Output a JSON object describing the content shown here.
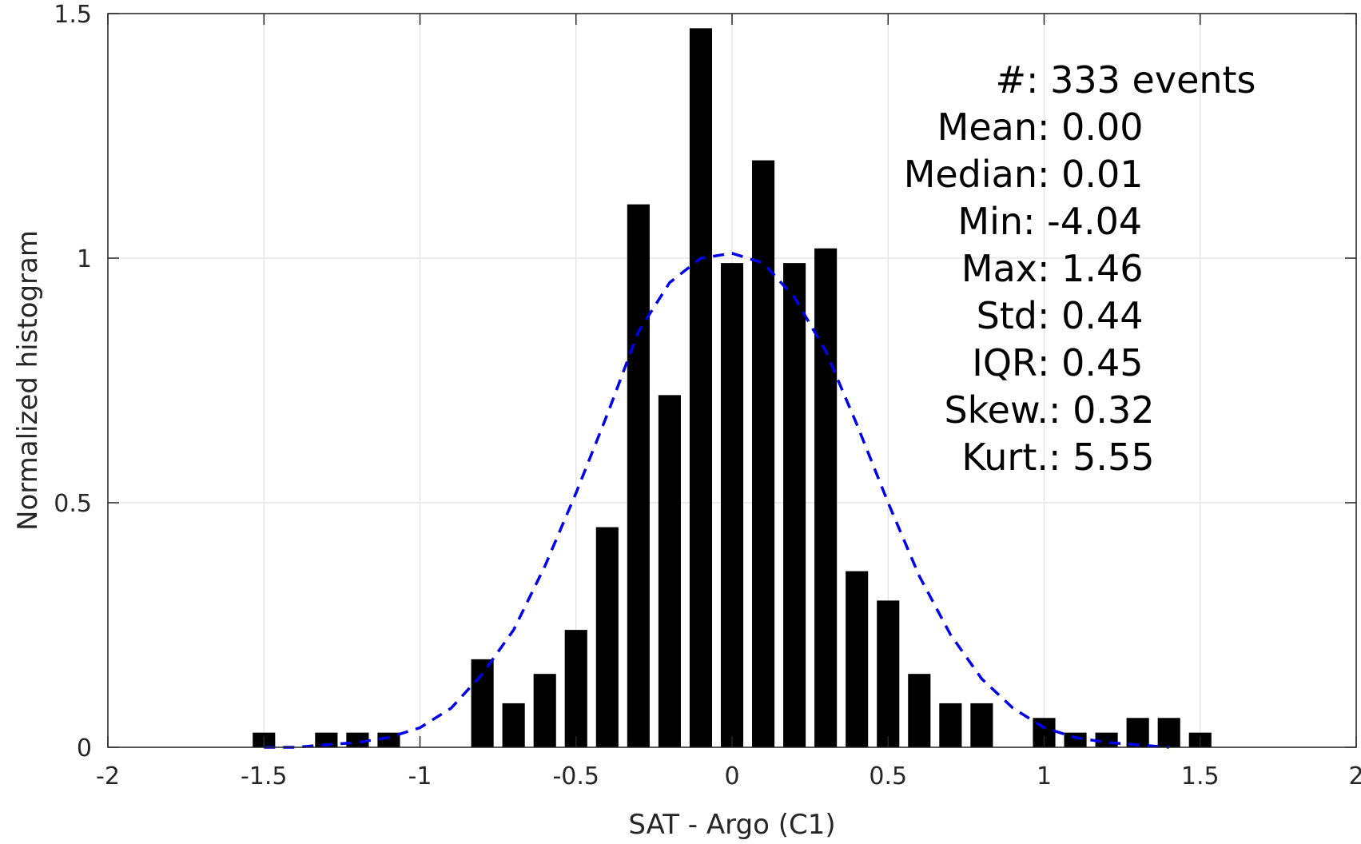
{
  "chart_data": {
    "type": "bar",
    "xlabel": "SAT - Argo (C1)",
    "ylabel": "Normalized histogram",
    "xlim": [
      -2,
      2
    ],
    "ylim": [
      0,
      1.5
    ],
    "xticks": [
      -2,
      -1.5,
      -1,
      -0.5,
      0,
      0.5,
      1,
      1.5,
      2
    ],
    "xtick_labels": [
      "-2",
      "-1.5",
      "-1",
      "-0.5",
      "0",
      "0.5",
      "1",
      "1.5",
      "2"
    ],
    "yticks": [
      0,
      0.5,
      1,
      1.5
    ],
    "ytick_labels": [
      "0",
      "0.5",
      "1",
      "1.5"
    ],
    "grid": true,
    "bar_color": "#000000",
    "bin_width": 0.1,
    "bars": {
      "x": [
        -1.5,
        -1.3,
        -1.2,
        -1.1,
        -0.8,
        -0.7,
        -0.6,
        -0.5,
        -0.4,
        -0.3,
        -0.2,
        -0.1,
        0.0,
        0.1,
        0.2,
        0.3,
        0.4,
        0.5,
        0.6,
        0.7,
        0.8,
        1.0,
        1.1,
        1.2,
        1.3,
        1.4,
        1.5
      ],
      "values": [
        0.03,
        0.03,
        0.03,
        0.03,
        0.18,
        0.09,
        0.15,
        0.24,
        0.45,
        1.11,
        0.72,
        1.47,
        0.99,
        1.2,
        0.99,
        1.02,
        0.36,
        0.3,
        0.15,
        0.09,
        0.09,
        0.06,
        0.03,
        0.03,
        0.06,
        0.06,
        0.03
      ]
    },
    "fit_curve": {
      "style": "dashed",
      "color": "#0000ee",
      "x": [
        -1.5,
        -1.4,
        -1.3,
        -1.2,
        -1.1,
        -1.0,
        -0.9,
        -0.8,
        -0.7,
        -0.6,
        -0.5,
        -0.4,
        -0.3,
        -0.2,
        -0.1,
        0.0,
        0.1,
        0.2,
        0.3,
        0.4,
        0.5,
        0.6,
        0.7,
        0.8,
        0.9,
        1.0,
        1.1,
        1.2,
        1.3,
        1.4
      ],
      "y": [
        0.0,
        0.0,
        0.005,
        0.01,
        0.02,
        0.04,
        0.08,
        0.15,
        0.24,
        0.37,
        0.52,
        0.68,
        0.85,
        0.95,
        1.0,
        1.01,
        0.99,
        0.92,
        0.81,
        0.66,
        0.5,
        0.35,
        0.23,
        0.14,
        0.08,
        0.04,
        0.02,
        0.01,
        0.005,
        0.0
      ]
    },
    "stats": [
      {
        "label": "#  ",
        "value": ": 333 events"
      },
      {
        "label": "Mean ",
        "value": ": 0.00"
      },
      {
        "label": "Median ",
        "value": ": 0.01"
      },
      {
        "label": "Min ",
        "value": ": -4.04"
      },
      {
        "label": "Max ",
        "value": ": 1.46"
      },
      {
        "label": "Std ",
        "value": ": 0.44"
      },
      {
        "label": "IQR ",
        "value": ": 0.45"
      },
      {
        "label": "Skew. ",
        "value": ": 0.32"
      },
      {
        "label": "Kurt. ",
        "value": ": 5.55"
      }
    ]
  }
}
